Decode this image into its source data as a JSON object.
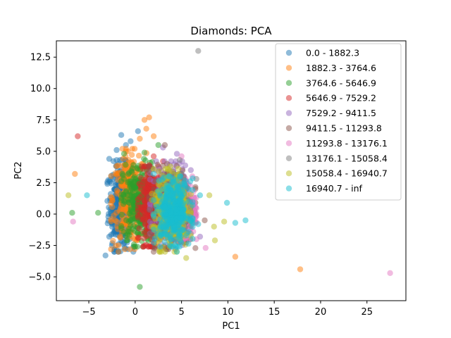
{
  "chart_data": {
    "type": "scatter",
    "title": "Diamonds: PCA",
    "xlabel": "PC1",
    "ylabel": "PC2",
    "xlim": [
      -8.5,
      29.2
    ],
    "ylim": [
      -6.9,
      13.8
    ],
    "xticks": [
      -5,
      0,
      5,
      10,
      15,
      20,
      25
    ],
    "xtick_labels": [
      "−5",
      "0",
      "5",
      "10",
      "15",
      "20",
      "25"
    ],
    "yticks": [
      -5.0,
      -2.5,
      0.0,
      2.5,
      5.0,
      7.5,
      10.0,
      12.5
    ],
    "ytick_labels": [
      "−5.0",
      "−2.5",
      "0.0",
      "2.5",
      "5.0",
      "7.5",
      "10.0",
      "12.5"
    ],
    "grid": false,
    "legend_position": "top-right",
    "series": [
      {
        "name": "0.0 - 1882.3",
        "color": "#1f77b4",
        "cluster": {
          "x": [
            -3.0,
            -0.2
          ],
          "y": [
            -3.0,
            4.3
          ]
        },
        "points": [
          [
            -0.5,
            5.8
          ],
          [
            -1.5,
            6.3
          ],
          [
            -2.0,
            5.1
          ],
          [
            0.3,
            6.6
          ],
          [
            -3.2,
            -3.3
          ],
          [
            -2.8,
            4.4
          ],
          [
            -1.0,
            5.5
          ],
          [
            -2.5,
            -2.5
          ],
          [
            -0.8,
            -2.8
          ]
        ]
      },
      {
        "name": "1882.3 - 3764.6",
        "color": "#ff7f0e",
        "cluster": {
          "x": [
            -2.6,
            1.4
          ],
          "y": [
            -2.8,
            5.2
          ]
        },
        "points": [
          [
            1.0,
            7.5
          ],
          [
            1.5,
            7.7
          ],
          [
            1.2,
            6.8
          ],
          [
            0.5,
            6.0
          ],
          [
            -6.5,
            3.2
          ],
          [
            10.8,
            -3.4
          ],
          [
            17.8,
            -4.4
          ],
          [
            2.0,
            6.2
          ],
          [
            -1.8,
            -3.0
          ]
        ]
      },
      {
        "name": "3764.6 - 5646.9",
        "color": "#2ca02c",
        "cluster": {
          "x": [
            -1.5,
            2.3
          ],
          "y": [
            -2.6,
            4.4
          ]
        },
        "points": [
          [
            -6.8,
            0.1
          ],
          [
            -4.0,
            0.1
          ],
          [
            0.5,
            -5.8
          ],
          [
            2.5,
            5.5
          ],
          [
            -1.2,
            4.8
          ],
          [
            1.0,
            4.9
          ]
        ]
      },
      {
        "name": "5646.9 - 7529.2",
        "color": "#d62728",
        "cluster": {
          "x": [
            0.3,
            3.2
          ],
          "y": [
            -2.6,
            3.8
          ]
        },
        "points": [
          [
            -6.2,
            6.2
          ],
          [
            2.0,
            4.6
          ],
          [
            1.5,
            3.9
          ],
          [
            3.0,
            4.2
          ]
        ]
      },
      {
        "name": "7529.2 - 9411.5",
        "color": "#9467bd",
        "cluster": {
          "x": [
            1.6,
            5.6
          ],
          "y": [
            -2.6,
            4.2
          ]
        },
        "points": [
          [
            4.5,
            4.8
          ],
          [
            6.0,
            3.5
          ],
          [
            7.0,
            -1.8
          ],
          [
            3.0,
            5.3
          ]
        ]
      },
      {
        "name": "9411.5 - 11293.8",
        "color": "#8c564b",
        "cluster": {
          "x": [
            1.5,
            6.5
          ],
          "y": [
            -2.8,
            4.0
          ]
        },
        "points": [
          [
            3.2,
            5.5
          ],
          [
            6.5,
            2.0
          ],
          [
            7.5,
            -0.5
          ],
          [
            2.0,
            -3.0
          ]
        ]
      },
      {
        "name": "11293.8 - 13176.1",
        "color": "#e377c2",
        "cluster": {
          "x": [
            3.6,
            6.6
          ],
          "y": [
            -2.0,
            3.0
          ]
        },
        "points": [
          [
            -6.7,
            -0.6
          ],
          [
            27.5,
            -4.7
          ],
          [
            7.6,
            -2.7
          ],
          [
            5.0,
            4.6
          ]
        ]
      },
      {
        "name": "13176.1 - 15058.4",
        "color": "#7f7f7f",
        "cluster": {
          "x": [
            3.0,
            6.0
          ],
          "y": [
            -2.2,
            3.2
          ]
        },
        "points": [
          [
            6.8,
            13.0
          ],
          [
            4.8,
            4.3
          ],
          [
            6.6,
            2.8
          ]
        ]
      },
      {
        "name": "15058.4 - 16940.7",
        "color": "#bcbd22",
        "cluster": {
          "x": [
            1.8,
            6.0
          ],
          "y": [
            -3.0,
            3.6
          ]
        },
        "points": [
          [
            -7.2,
            1.5
          ],
          [
            9.6,
            -0.6
          ],
          [
            8.0,
            1.5
          ],
          [
            8.5,
            -1.0
          ],
          [
            5.5,
            -3.5
          ],
          [
            3.8,
            3.8
          ],
          [
            8.6,
            -2.1
          ]
        ]
      },
      {
        "name": "16940.7 - inf",
        "color": "#17becf",
        "cluster": {
          "x": [
            2.0,
            6.2
          ],
          "y": [
            -2.6,
            3.0
          ]
        },
        "points": [
          [
            -5.2,
            1.5
          ],
          [
            9.9,
            0.9
          ],
          [
            10.8,
            -0.7
          ],
          [
            11.9,
            -0.5
          ],
          [
            7.0,
            1.5
          ],
          [
            6.8,
            -0.8
          ],
          [
            4.5,
            -3.0
          ],
          [
            2.0,
            3.2
          ]
        ]
      }
    ]
  }
}
